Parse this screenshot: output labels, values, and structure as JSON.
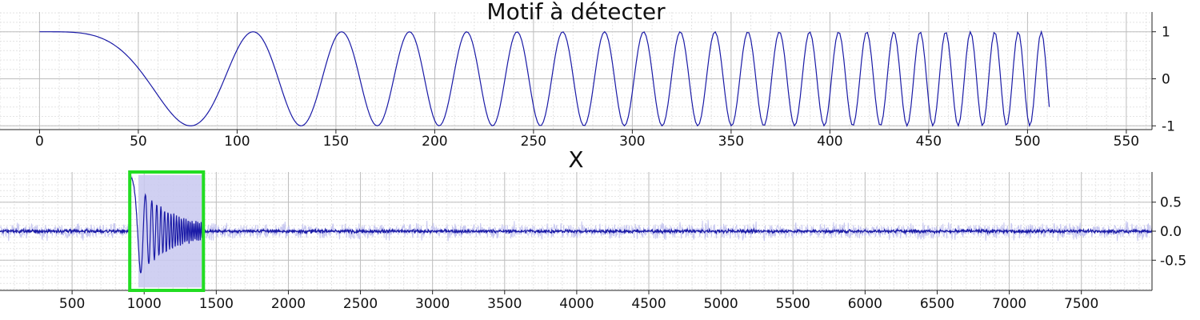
{
  "chart_data": [
    {
      "type": "line",
      "title": "Motif à détecter",
      "xlabel": "",
      "ylabel": "",
      "xlim": [
        -20,
        563
      ],
      "ylim": [
        -1.08,
        1.42
      ],
      "xticks": [
        0,
        50,
        100,
        150,
        200,
        250,
        300,
        350,
        400,
        450,
        500,
        550
      ],
      "yticks": [
        -1,
        0,
        1
      ],
      "ytick_labels": [
        "-1",
        "0",
        "1"
      ],
      "grid": true,
      "y_axis_side": "right",
      "series": [
        {
          "color": "#1a1aa6",
          "function": "chirp cos(2π·0.0000856·x²)",
          "x_range": [
            0,
            511
          ]
        }
      ]
    },
    {
      "type": "line",
      "title": "X",
      "xlabel": "",
      "ylabel": "",
      "xlim": [
        0,
        7990
      ],
      "ylim": [
        -1.02,
        1.02
      ],
      "xticks": [
        500,
        1000,
        1500,
        2000,
        2500,
        3000,
        3500,
        4000,
        4500,
        5000,
        5500,
        6000,
        6500,
        7000,
        7500
      ],
      "yticks": [
        -0.5,
        0.0,
        0.5
      ],
      "ytick_labels": [
        "-0.5",
        "0.0",
        "0.5"
      ],
      "grid": true,
      "y_axis_side": "right",
      "series": [
        {
          "color": "#c8c8f0",
          "description": "noisy signal envelope"
        },
        {
          "color": "#1a1aa6",
          "description": "filtered signal"
        }
      ],
      "detected_region": {
        "x_start": 900,
        "x_end": 1411,
        "color": "#22dd22"
      }
    }
  ]
}
